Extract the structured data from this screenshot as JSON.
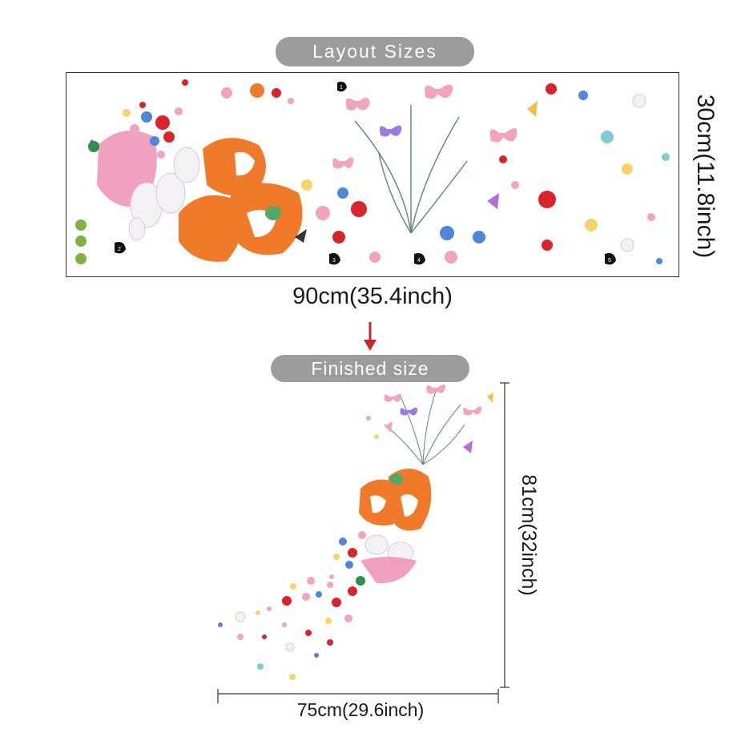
{
  "labels": {
    "layout_sizes": "Layout Sizes",
    "finished_size": "Finished size",
    "sheet_width": "90cm(35.4inch)",
    "sheet_height": "30cm(11.8inch)",
    "finished_height": "81cm(32inch)",
    "finished_width": "75cm(29.6inch)"
  },
  "sheet_markers": [
    "1",
    "2",
    "3",
    "4",
    "5"
  ],
  "colors": {
    "pill_bg": "#9c9c9c",
    "arrow": "#c62828",
    "fox_orange": "#f07a2a",
    "umbrella_pink": "#ef8fb5",
    "poppy_red": "#d9242b",
    "flower_blue": "#4f86d6",
    "butterfly_pink": "#f2a3bd",
    "butterfly_purple": "#9a7be0",
    "stem_green": "#5d8a6a"
  }
}
